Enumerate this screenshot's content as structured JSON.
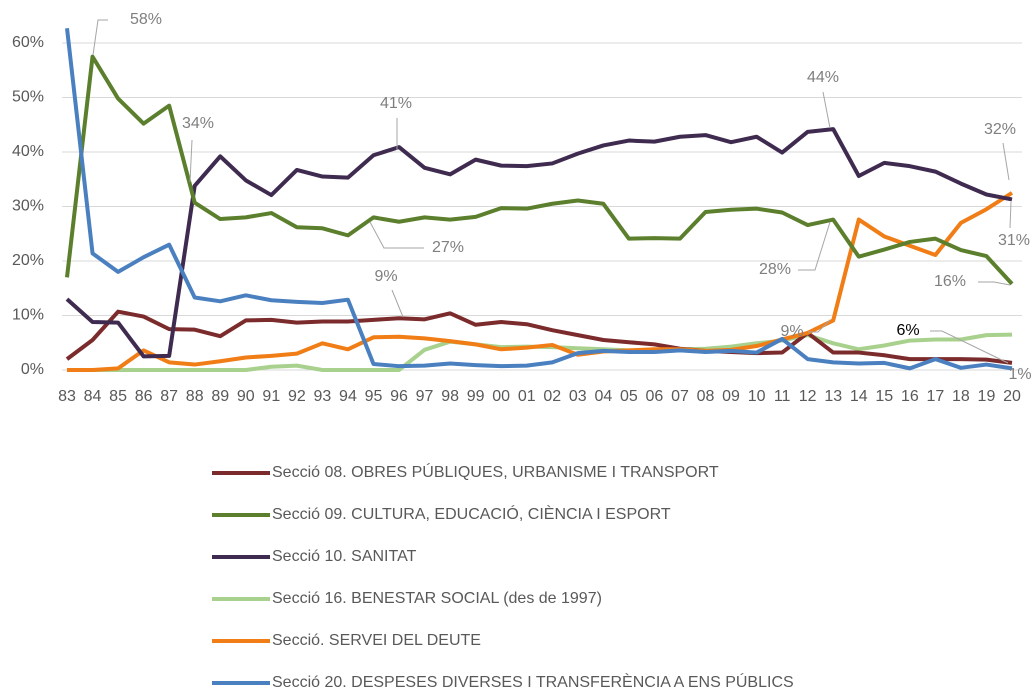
{
  "chart_data": {
    "type": "line",
    "categories": [
      "83",
      "84",
      "85",
      "86",
      "87",
      "88",
      "89",
      "90",
      "91",
      "92",
      "93",
      "94",
      "95",
      "96",
      "97",
      "98",
      "99",
      "00",
      "01",
      "02",
      "03",
      "04",
      "05",
      "06",
      "07",
      "08",
      "09",
      "10",
      "11",
      "12",
      "13",
      "14",
      "15",
      "16",
      "17",
      "18",
      "19",
      "20"
    ],
    "series": [
      {
        "name": "Secció 08. OBRES PÚBLIQUES, URBANISME I TRANSPORT",
        "color": "#7b2b2b",
        "values": [
          2,
          5.5,
          10.7,
          9.8,
          7.5,
          7.4,
          6.2,
          9.1,
          9.2,
          8.7,
          8.9,
          8.9,
          9.2,
          9.5,
          9.3,
          10.4,
          8.3,
          8.8,
          8.4,
          7.3,
          6.4,
          5.5,
          5.1,
          4.7,
          3.9,
          3.5,
          3.3,
          3.1,
          3.2,
          6.8,
          3.2,
          3.2,
          2.7,
          2.0,
          2.0,
          2.0,
          1.9,
          1.3
        ]
      },
      {
        "name": "Secció 09. CULTURA, EDUCACIÓ, CIÈNCIA I ESPORT",
        "color": "#5b7f2c",
        "values": [
          17,
          57.5,
          49.8,
          45.2,
          48.5,
          30.7,
          27.7,
          28,
          28.8,
          26.2,
          26,
          24.7,
          28,
          27.2,
          28,
          27.6,
          28.1,
          29.7,
          29.6,
          30.5,
          31.1,
          30.5,
          24.1,
          24.2,
          24.1,
          29,
          29.4,
          29.6,
          28.9,
          26.6,
          27.6,
          20.8,
          22.1,
          23.5,
          24.1,
          22,
          20.9,
          15.8
        ]
      },
      {
        "name": "Secció 10. SANITAT",
        "color": "#3f2b50",
        "values": [
          13,
          8.8,
          8.7,
          2.5,
          2.6,
          33.8,
          39.2,
          34.8,
          32.1,
          36.7,
          35.5,
          35.3,
          39.4,
          40.9,
          37.1,
          35.9,
          38.6,
          37.5,
          37.4,
          37.9,
          39.7,
          41.2,
          42.1,
          41.9,
          42.8,
          43.1,
          41.8,
          42.8,
          39.9,
          43.7,
          44.2,
          35.6,
          38,
          37.4,
          36.4,
          34.2,
          32.2,
          31.3
        ]
      },
      {
        "name": "Secció 16. BENESTAR SOCIAL (des de 1997)",
        "color": "#a9d18e",
        "values": [
          0,
          0,
          0,
          0,
          0,
          0,
          0,
          0,
          0.6,
          0.8,
          0,
          0,
          0,
          0,
          3.7,
          5.2,
          4.7,
          4.2,
          4.3,
          4.2,
          4,
          3.8,
          3.6,
          3.7,
          3.8,
          3.9,
          4.3,
          4.9,
          5.4,
          6.4,
          4.9,
          3.8,
          4.5,
          5.4,
          5.6,
          5.6,
          6.4,
          6.5
        ]
      },
      {
        "name": "Secció. SERVEI DEL DEUTE",
        "color": "#f07d16",
        "values": [
          0,
          0,
          0.3,
          3.6,
          1.4,
          1,
          1.6,
          2.3,
          2.6,
          3,
          4.9,
          3.8,
          6,
          6.1,
          5.8,
          5.3,
          4.7,
          3.8,
          4.1,
          4.6,
          2.8,
          3.4,
          3.6,
          3.8,
          3.8,
          3.5,
          3.7,
          4.4,
          5.6,
          6.8,
          9.1,
          27.6,
          24.5,
          22.8,
          21.1,
          27,
          29.5,
          32.5
        ]
      },
      {
        "name": "Secció 20. DESPESES DIVERSES I TRANSFERÈNCIA A ENS PÚBLICS",
        "color": "#4a80c0",
        "values": [
          62.7,
          21.4,
          18,
          20.7,
          23,
          13.3,
          12.6,
          13.7,
          12.8,
          12.5,
          12.3,
          12.9,
          1.1,
          0.7,
          0.8,
          1.2,
          0.9,
          0.7,
          0.8,
          1.4,
          3.1,
          3.5,
          3.3,
          3.3,
          3.6,
          3.3,
          3.5,
          3.2,
          5.7,
          2,
          1.4,
          1.2,
          1.3,
          0.3,
          2,
          0.4,
          1,
          0.3
        ]
      }
    ],
    "ylim": [
      0,
      65
    ],
    "yticks": [
      {
        "value": 0,
        "label": "0%"
      },
      {
        "value": 10,
        "label": "10%"
      },
      {
        "value": 20,
        "label": "20%"
      },
      {
        "value": 30,
        "label": "30%"
      },
      {
        "value": 40,
        "label": "40%"
      },
      {
        "value": 50,
        "label": "50%"
      },
      {
        "value": 60,
        "label": "60%"
      }
    ],
    "grid": true,
    "annotations": [
      "58%",
      "34%",
      "41%",
      "27%",
      "9%",
      "44%",
      "28%",
      "9%",
      "32%",
      "31%",
      "16%",
      "6%",
      "1%"
    ]
  }
}
